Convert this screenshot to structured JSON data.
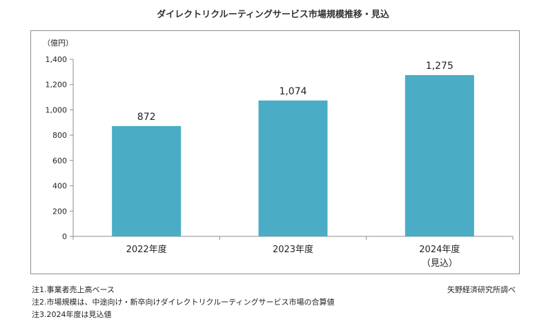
{
  "title": "ダイレクトリクルーティングサービス市場規模推移・見込",
  "unit_label": "（億円）",
  "source": "矢野経済研究所調べ",
  "notes": [
    "注1.事業者売上高ベース",
    "注2.市場規模は、中途向け・新卒向けダイレクトリクルーティングサービス市場の合算値",
    "注3.2024年度は見込値"
  ],
  "colors": {
    "bar": "#4bacc6",
    "axis": "#8c8c8c"
  },
  "chart_data": {
    "type": "bar",
    "title": "ダイレクトリクルーティングサービス市場規模推移・見込",
    "ylabel": "（億円）",
    "xlabel": "",
    "categories": [
      "2022年度",
      "2023年度",
      "2024年度"
    ],
    "category_sublabels": [
      "",
      "",
      "（見込）"
    ],
    "values": [
      872,
      1074,
      1275
    ],
    "value_labels": [
      "872",
      "1,074",
      "1,275"
    ],
    "ylim": [
      0,
      1400
    ],
    "yticks": [
      0,
      200,
      400,
      600,
      800,
      1000,
      1200,
      1400
    ],
    "ytick_labels": [
      "0",
      "200",
      "400",
      "600",
      "800",
      "1,000",
      "1,200",
      "1,400"
    ],
    "grid": false,
    "legend": "none"
  }
}
